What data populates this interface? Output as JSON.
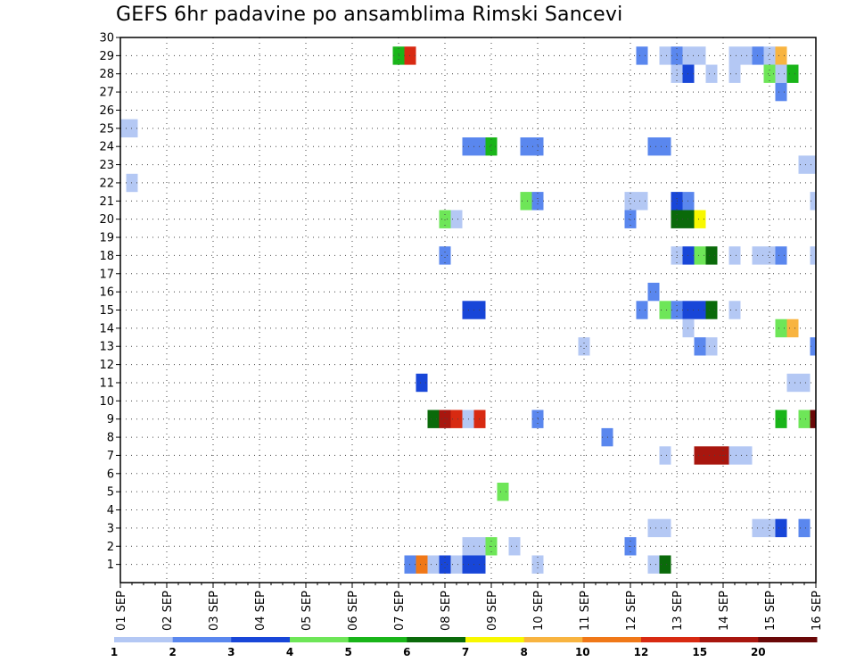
{
  "title": "GEFS 6hr padavine po ansamblima Rimski Sancevi",
  "chart_data": {
    "type": "heatmap",
    "title": "GEFS 6hr padavine po ansamblima Rimski Sancevi",
    "x_ticks": [
      "01 SEP",
      "02 SEP",
      "03 SEP",
      "04 SEP",
      "05 SEP",
      "06 SEP",
      "07 SEP",
      "08 SEP",
      "09 SEP",
      "10 SEP",
      "11 SEP",
      "12 SEP",
      "13 SEP",
      "14 SEP",
      "15 SEP",
      "16 SEP"
    ],
    "xlim": [
      0,
      60
    ],
    "x_unit": "6-hour steps from 01 SEP",
    "y_ticks": [
      1,
      2,
      3,
      4,
      5,
      6,
      7,
      8,
      9,
      10,
      11,
      12,
      13,
      14,
      15,
      16,
      17,
      18,
      19,
      20,
      21,
      22,
      23,
      24,
      25,
      26,
      27,
      28,
      29,
      30
    ],
    "ylim": [
      0,
      30
    ],
    "grid": true,
    "legend": {
      "placement": "bottom",
      "bounds": [
        1,
        2,
        3,
        4,
        5,
        6,
        7,
        8,
        10,
        12,
        15,
        20
      ],
      "colors": [
        "#b4c8f4",
        "#5a87ee",
        "#1846d8",
        "#6ee658",
        "#19b519",
        "#0a6a0a",
        "#f8f800",
        "#f8b440",
        "#f07818",
        "#d82a12",
        "#a8160e",
        "#6a0808"
      ]
    },
    "cells": [
      {
        "x": 0,
        "y": 25,
        "c": 0
      },
      {
        "x": 1,
        "y": 25,
        "c": 0
      },
      {
        "x": 1,
        "y": 22,
        "c": 0
      },
      {
        "x": 24,
        "y": 29,
        "c": 4
      },
      {
        "x": 25,
        "y": 29,
        "c": 9
      },
      {
        "x": 25,
        "y": 1,
        "c": 1
      },
      {
        "x": 26,
        "y": 1,
        "c": 8
      },
      {
        "x": 27,
        "y": 1,
        "c": 0
      },
      {
        "x": 26,
        "y": 11,
        "c": 2
      },
      {
        "x": 27,
        "y": 9,
        "c": 5
      },
      {
        "x": 28,
        "y": 9,
        "c": 10
      },
      {
        "x": 29,
        "y": 9,
        "c": 9
      },
      {
        "x": 30,
        "y": 9,
        "c": 0
      },
      {
        "x": 31,
        "y": 9,
        "c": 9
      },
      {
        "x": 28,
        "y": 1,
        "c": 2
      },
      {
        "x": 29,
        "y": 1,
        "c": 0
      },
      {
        "x": 30,
        "y": 1,
        "c": 2
      },
      {
        "x": 31,
        "y": 1,
        "c": 2
      },
      {
        "x": 28,
        "y": 20,
        "c": 3
      },
      {
        "x": 29,
        "y": 20,
        "c": 0
      },
      {
        "x": 28,
        "y": 18,
        "c": 1
      },
      {
        "x": 30,
        "y": 24,
        "c": 1
      },
      {
        "x": 31,
        "y": 24,
        "c": 1
      },
      {
        "x": 32,
        "y": 24,
        "c": 4
      },
      {
        "x": 30,
        "y": 15,
        "c": 2
      },
      {
        "x": 31,
        "y": 15,
        "c": 2
      },
      {
        "x": 30,
        "y": 2,
        "c": 0
      },
      {
        "x": 31,
        "y": 2,
        "c": 0
      },
      {
        "x": 32,
        "y": 2,
        "c": 3
      },
      {
        "x": 33,
        "y": 5,
        "c": 3
      },
      {
        "x": 34,
        "y": 2,
        "c": 0
      },
      {
        "x": 35,
        "y": 21,
        "c": 3
      },
      {
        "x": 36,
        "y": 21,
        "c": 1
      },
      {
        "x": 35,
        "y": 24,
        "c": 1
      },
      {
        "x": 36,
        "y": 24,
        "c": 1
      },
      {
        "x": 36,
        "y": 9,
        "c": 1
      },
      {
        "x": 36,
        "y": 1,
        "c": 0
      },
      {
        "x": 40,
        "y": 13,
        "c": 0
      },
      {
        "x": 42,
        "y": 8,
        "c": 1
      },
      {
        "x": 44,
        "y": 2,
        "c": 1
      },
      {
        "x": 44,
        "y": 20,
        "c": 1
      },
      {
        "x": 44,
        "y": 21,
        "c": 0
      },
      {
        "x": 45,
        "y": 21,
        "c": 0
      },
      {
        "x": 45,
        "y": 29,
        "c": 1
      },
      {
        "x": 45,
        "y": 15,
        "c": 1
      },
      {
        "x": 46,
        "y": 16,
        "c": 1
      },
      {
        "x": 46,
        "y": 24,
        "c": 1
      },
      {
        "x": 47,
        "y": 24,
        "c": 1
      },
      {
        "x": 46,
        "y": 3,
        "c": 0
      },
      {
        "x": 47,
        "y": 3,
        "c": 0
      },
      {
        "x": 46,
        "y": 1,
        "c": 0
      },
      {
        "x": 47,
        "y": 1,
        "c": 5
      },
      {
        "x": 47,
        "y": 7,
        "c": 0
      },
      {
        "x": 47,
        "y": 29,
        "c": 0
      },
      {
        "x": 48,
        "y": 29,
        "c": 1
      },
      {
        "x": 49,
        "y": 29,
        "c": 0
      },
      {
        "x": 50,
        "y": 29,
        "c": 0
      },
      {
        "x": 48,
        "y": 28,
        "c": 0
      },
      {
        "x": 49,
        "y": 28,
        "c": 2
      },
      {
        "x": 47,
        "y": 15,
        "c": 3
      },
      {
        "x": 48,
        "y": 15,
        "c": 1
      },
      {
        "x": 49,
        "y": 15,
        "c": 2
      },
      {
        "x": 50,
        "y": 15,
        "c": 2
      },
      {
        "x": 51,
        "y": 15,
        "c": 5
      },
      {
        "x": 48,
        "y": 18,
        "c": 0
      },
      {
        "x": 49,
        "y": 18,
        "c": 2
      },
      {
        "x": 50,
        "y": 18,
        "c": 3
      },
      {
        "x": 51,
        "y": 18,
        "c": 5
      },
      {
        "x": 48,
        "y": 20,
        "c": 5
      },
      {
        "x": 49,
        "y": 20,
        "c": 5
      },
      {
        "x": 50,
        "y": 20,
        "c": 6
      },
      {
        "x": 48,
        "y": 21,
        "c": 2
      },
      {
        "x": 49,
        "y": 21,
        "c": 1
      },
      {
        "x": 49,
        "y": 14,
        "c": 0
      },
      {
        "x": 50,
        "y": 13,
        "c": 1
      },
      {
        "x": 51,
        "y": 13,
        "c": 0
      },
      {
        "x": 50,
        "y": 7,
        "c": 10
      },
      {
        "x": 51,
        "y": 7,
        "c": 10
      },
      {
        "x": 52,
        "y": 7,
        "c": 10
      },
      {
        "x": 51,
        "y": 28,
        "c": 0
      },
      {
        "x": 53,
        "y": 15,
        "c": 0
      },
      {
        "x": 53,
        "y": 18,
        "c": 0
      },
      {
        "x": 53,
        "y": 7,
        "c": 0
      },
      {
        "x": 54,
        "y": 7,
        "c": 0
      },
      {
        "x": 53,
        "y": 29,
        "c": 0
      },
      {
        "x": 54,
        "y": 29,
        "c": 0
      },
      {
        "x": 55,
        "y": 29,
        "c": 1
      },
      {
        "x": 56,
        "y": 29,
        "c": 0
      },
      {
        "x": 57,
        "y": 29,
        "c": 7
      },
      {
        "x": 53,
        "y": 28,
        "c": 0
      },
      {
        "x": 55,
        "y": 18,
        "c": 0
      },
      {
        "x": 56,
        "y": 18,
        "c": 0
      },
      {
        "x": 57,
        "y": 18,
        "c": 1
      },
      {
        "x": 55,
        "y": 3,
        "c": 0
      },
      {
        "x": 56,
        "y": 3,
        "c": 0
      },
      {
        "x": 57,
        "y": 3,
        "c": 2
      },
      {
        "x": 56,
        "y": 28,
        "c": 3
      },
      {
        "x": 57,
        "y": 28,
        "c": 0
      },
      {
        "x": 58,
        "y": 28,
        "c": 4
      },
      {
        "x": 57,
        "y": 27,
        "c": 1
      },
      {
        "x": 57,
        "y": 14,
        "c": 3
      },
      {
        "x": 58,
        "y": 14,
        "c": 7
      },
      {
        "x": 57,
        "y": 9,
        "c": 4
      },
      {
        "x": 59,
        "y": 9,
        "c": 3
      },
      {
        "x": 60,
        "y": 9,
        "c": 11
      },
      {
        "x": 58,
        "y": 11,
        "c": 0
      },
      {
        "x": 59,
        "y": 11,
        "c": 0
      },
      {
        "x": 59,
        "y": 3,
        "c": 1
      },
      {
        "x": 59,
        "y": 23,
        "c": 0
      },
      {
        "x": 60,
        "y": 23,
        "c": 0
      },
      {
        "x": 60,
        "y": 21,
        "c": 0
      },
      {
        "x": 60,
        "y": 18,
        "c": 0
      },
      {
        "x": 60,
        "y": 13,
        "c": 1
      }
    ]
  }
}
